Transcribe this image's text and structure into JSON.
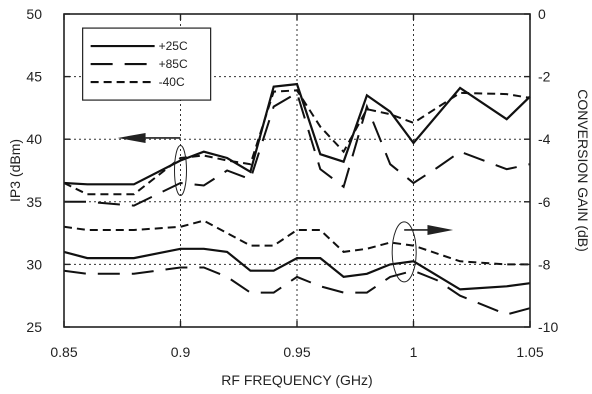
{
  "chart_data": {
    "type": "line",
    "xlabel": "RF FREQUENCY (GHz)",
    "ylabel_left": "IP3 (dBm)",
    "ylabel_right": "CONVERSION GAIN (dB)",
    "xlim": [
      0.85,
      1.05
    ],
    "ylim_left": [
      25,
      50
    ],
    "ylim_right": [
      -10,
      0
    ],
    "x_ticks": [
      "0.85",
      "0.9",
      "0.95",
      "1",
      "1.05"
    ],
    "x_tick_values": [
      0.85,
      0.9,
      0.95,
      1.0,
      1.05
    ],
    "y_left_ticks": [
      "25",
      "30",
      "35",
      "40",
      "45",
      "50"
    ],
    "y_left_tick_values": [
      25,
      30,
      35,
      40,
      45,
      50
    ],
    "y_right_ticks": [
      "-10",
      "-8",
      "-6",
      "-4",
      "-2",
      "0"
    ],
    "y_right_tick_values": [
      -10,
      -8,
      -6,
      -4,
      -2,
      0
    ],
    "grid": "dotted",
    "legend_position": "top-left",
    "series": [
      {
        "name": "+25C",
        "axis": "left",
        "dash": "solid",
        "x": [
          0.85,
          0.86,
          0.88,
          0.9,
          0.91,
          0.92,
          0.93,
          0.94,
          0.95,
          0.96,
          0.97,
          0.98,
          0.99,
          1.0,
          1.02,
          1.04,
          1.05
        ],
        "y": [
          36.5,
          36.4,
          36.4,
          38.3,
          39.0,
          38.5,
          37.4,
          44.2,
          44.4,
          38.8,
          38.2,
          43.5,
          42.2,
          39.7,
          44.1,
          41.6,
          43.4
        ]
      },
      {
        "name": "+85C",
        "axis": "left",
        "dash": "long",
        "x": [
          0.85,
          0.86,
          0.88,
          0.9,
          0.91,
          0.92,
          0.93,
          0.94,
          0.95,
          0.96,
          0.97,
          0.98,
          0.99,
          1.0,
          1.01,
          1.02,
          1.04,
          1.05
        ],
        "y": [
          35.0,
          35.0,
          34.7,
          36.5,
          36.3,
          37.5,
          36.8,
          42.6,
          43.7,
          37.6,
          36.2,
          42.6,
          38.0,
          36.5,
          37.7,
          39.0,
          37.6,
          38.0
        ]
      },
      {
        "name": "-40C",
        "axis": "left",
        "dash": "short",
        "x": [
          0.85,
          0.86,
          0.88,
          0.9,
          0.91,
          0.92,
          0.93,
          0.94,
          0.95,
          0.96,
          0.97,
          0.98,
          0.99,
          1.0,
          1.02,
          1.04,
          1.05
        ],
        "y": [
          36.5,
          35.6,
          35.6,
          38.5,
          38.7,
          38.3,
          38.0,
          43.8,
          43.9,
          41.0,
          39.0,
          42.4,
          42.0,
          41.3,
          43.7,
          43.6,
          43.3
        ]
      },
      {
        "name": "+25C",
        "axis": "right",
        "dash": "solid",
        "x": [
          0.85,
          0.86,
          0.88,
          0.9,
          0.91,
          0.92,
          0.93,
          0.94,
          0.95,
          0.96,
          0.97,
          0.98,
          0.99,
          1.0,
          1.02,
          1.04,
          1.05
        ],
        "y": [
          -7.6,
          -7.8,
          -7.8,
          -7.5,
          -7.5,
          -7.6,
          -8.2,
          -8.2,
          -7.8,
          -7.8,
          -8.4,
          -8.3,
          -8.0,
          -7.9,
          -8.8,
          -8.7,
          -8.6
        ]
      },
      {
        "name": "+85C",
        "axis": "right",
        "dash": "long",
        "x": [
          0.85,
          0.86,
          0.88,
          0.9,
          0.91,
          0.92,
          0.93,
          0.94,
          0.95,
          0.96,
          0.97,
          0.98,
          0.99,
          1.0,
          1.01,
          1.02,
          1.04,
          1.05
        ],
        "y": [
          -8.2,
          -8.3,
          -8.3,
          -8.1,
          -8.1,
          -8.4,
          -8.9,
          -8.9,
          -8.4,
          -8.7,
          -8.9,
          -8.9,
          -8.4,
          -8.2,
          -8.5,
          -9.0,
          -9.6,
          -9.4
        ]
      },
      {
        "name": "-40C",
        "axis": "right",
        "dash": "short",
        "x": [
          0.85,
          0.86,
          0.88,
          0.9,
          0.91,
          0.92,
          0.93,
          0.94,
          0.95,
          0.96,
          0.97,
          0.98,
          0.99,
          1.0,
          1.02,
          1.04,
          1.05
        ],
        "y": [
          -6.8,
          -6.9,
          -6.9,
          -6.8,
          -6.6,
          -7.0,
          -7.4,
          -7.4,
          -6.9,
          -6.9,
          -7.6,
          -7.5,
          -7.3,
          -7.4,
          -7.9,
          -8.0,
          -8.0
        ]
      }
    ]
  }
}
